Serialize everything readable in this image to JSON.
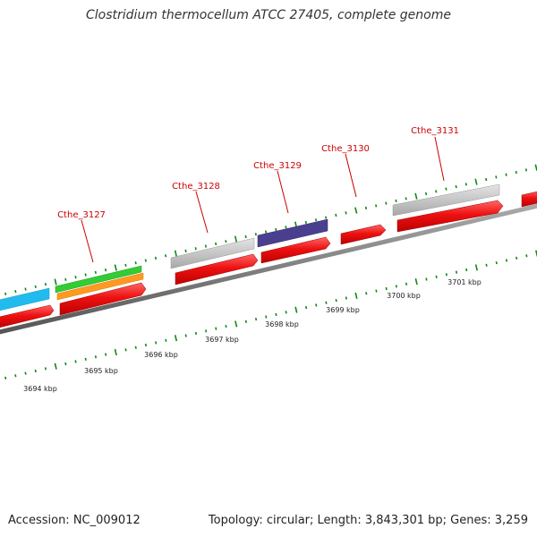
{
  "title": "Clostridium thermocellum ATCC 27405, complete genome",
  "accession_text": "Accession: NC_009012",
  "stats_text": "Topology: circular; Length: 3,843,301 bp; Genes: 3,259",
  "colors": {
    "gene_label": "#cc0000",
    "cds": "#ee1111",
    "backbone": "#777777",
    "tick": "#118811",
    "grey_feature": "#bdbdbd",
    "navy_feature": "#4a3f8f",
    "blue_feature": "#22bbee",
    "green_feature": "#33cc33",
    "orange_feature": "#ff9922"
  },
  "gene_labels": [
    {
      "text": "Cthe_3127"
    },
    {
      "text": "Cthe_3128"
    },
    {
      "text": "Cthe_3129"
    },
    {
      "text": "Cthe_3130"
    },
    {
      "text": "Cthe_3131"
    }
  ],
  "kbp_labels": [
    {
      "text": "3694 kbp"
    },
    {
      "text": "3695 kbp"
    },
    {
      "text": "3696 kbp"
    },
    {
      "text": "3697 kbp"
    },
    {
      "text": "3698 kbp"
    },
    {
      "text": "3699 kbp"
    },
    {
      "text": "3700 kbp"
    },
    {
      "text": "3701 kbp"
    }
  ]
}
